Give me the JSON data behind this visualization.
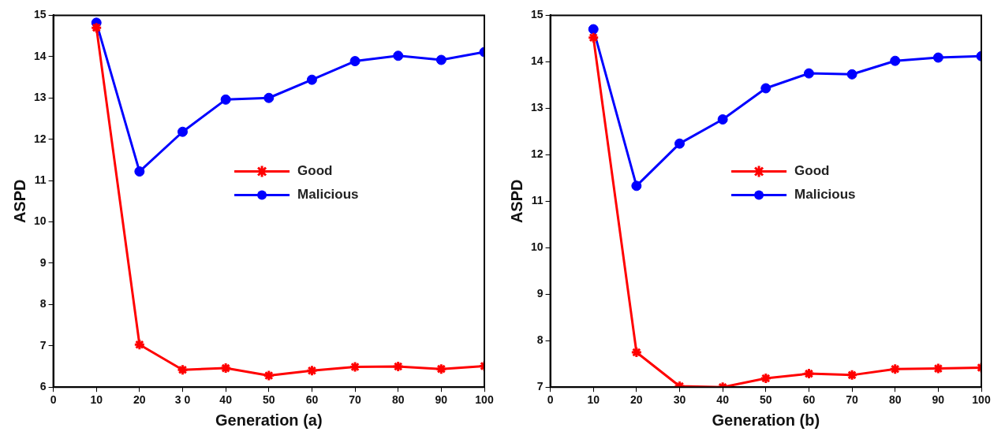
{
  "chart_data": [
    {
      "type": "line",
      "xlabel": "Generation (a)",
      "ylabel": "ASPD",
      "x": [
        10,
        20,
        30,
        40,
        50,
        60,
        70,
        80,
        90,
        100
      ],
      "xlim": [
        0,
        100
      ],
      "xticks": [
        0,
        10,
        20,
        {
          "value": 30,
          "label": "3 0"
        },
        40,
        50,
        60,
        70,
        80,
        90,
        100
      ],
      "ylim": [
        6,
        15
      ],
      "yticks": [
        6,
        7,
        8,
        9,
        10,
        11,
        12,
        13,
        14,
        15
      ],
      "legend": "center right",
      "grid": false,
      "series": [
        {
          "name": "Good",
          "color": "#ff0000",
          "marker": "cross",
          "values": [
            14.7,
            7.03,
            6.42,
            6.46,
            6.28,
            6.4,
            6.49,
            6.5,
            6.44,
            6.51
          ]
        },
        {
          "name": "Malicious",
          "color": "#0000ff",
          "marker": "circle",
          "values": [
            14.82,
            11.22,
            12.18,
            12.96,
            13.0,
            13.44,
            13.89,
            14.02,
            13.92,
            14.11
          ]
        }
      ]
    },
    {
      "type": "line",
      "xlabel": "Generation (b)",
      "ylabel": "ASPD",
      "x": [
        10,
        20,
        30,
        40,
        50,
        60,
        70,
        80,
        90,
        100
      ],
      "xlim": [
        0,
        100
      ],
      "xticks": [
        0,
        10,
        20,
        30,
        40,
        50,
        60,
        70,
        80,
        90,
        100
      ],
      "ylim": [
        7,
        15
      ],
      "yticks": [
        7,
        8,
        9,
        10,
        11,
        12,
        13,
        14,
        15
      ],
      "legend": "center right",
      "grid": false,
      "series": [
        {
          "name": "Good",
          "color": "#ff0000",
          "marker": "cross",
          "values": [
            14.52,
            7.75,
            7.02,
            7.0,
            7.19,
            7.29,
            7.26,
            7.39,
            7.4,
            7.42
          ]
        },
        {
          "name": "Malicious",
          "color": "#0000ff",
          "marker": "circle",
          "values": [
            14.7,
            11.33,
            12.24,
            12.76,
            13.43,
            13.75,
            13.73,
            14.02,
            14.09,
            14.12
          ]
        }
      ]
    }
  ]
}
